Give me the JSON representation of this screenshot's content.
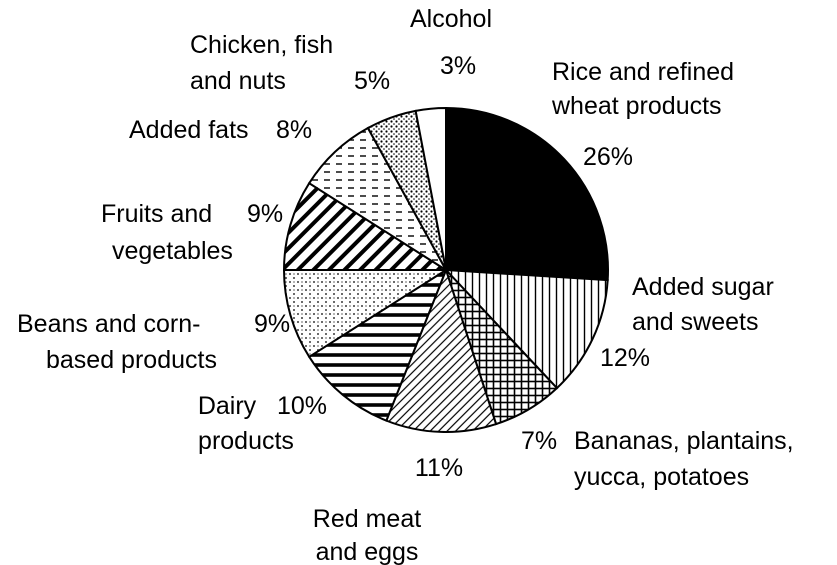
{
  "chart_data": {
    "type": "pie",
    "title": "",
    "start": "12 o'clock",
    "direction": "clockwise",
    "legend": "none",
    "slices": [
      {
        "label_lines": [
          "Rice and refined",
          "wheat products"
        ],
        "pct_text": "26%",
        "value": 26,
        "pattern": "solid-black"
      },
      {
        "label_lines": [
          "Added sugar",
          "and sweets"
        ],
        "pct_text": "12%",
        "value": 12,
        "pattern": "vertical-lines"
      },
      {
        "label_lines": [
          "Bananas, plantains,",
          "yucca, potatoes"
        ],
        "pct_text": "7%",
        "value": 7,
        "pattern": "grid"
      },
      {
        "label_lines": [
          "Red meat",
          "and eggs"
        ],
        "pct_text": "11%",
        "value": 11,
        "pattern": "dense-diagonal"
      },
      {
        "label_lines": [
          "Dairy",
          "products"
        ],
        "pct_text": "10%",
        "value": 10,
        "pattern": "horizontal-lines"
      },
      {
        "label_lines": [
          "Beans and corn-",
          "based products"
        ],
        "pct_text": "9%",
        "value": 9,
        "pattern": "dotted-cross"
      },
      {
        "label_lines": [
          "Fruits and",
          "vegetables"
        ],
        "pct_text": "9%",
        "value": 9,
        "pattern": "wide-diagonal"
      },
      {
        "label_lines": [
          "Added fats"
        ],
        "pct_text": "8%",
        "value": 8,
        "pattern": "dashed-horizontal"
      },
      {
        "label_lines": [
          "Chicken, fish",
          "and nuts"
        ],
        "pct_text": "5%",
        "value": 5,
        "pattern": "dots"
      },
      {
        "label_lines": [
          "Alcohol"
        ],
        "pct_text": "3%",
        "value": 3,
        "pattern": "white"
      }
    ]
  }
}
